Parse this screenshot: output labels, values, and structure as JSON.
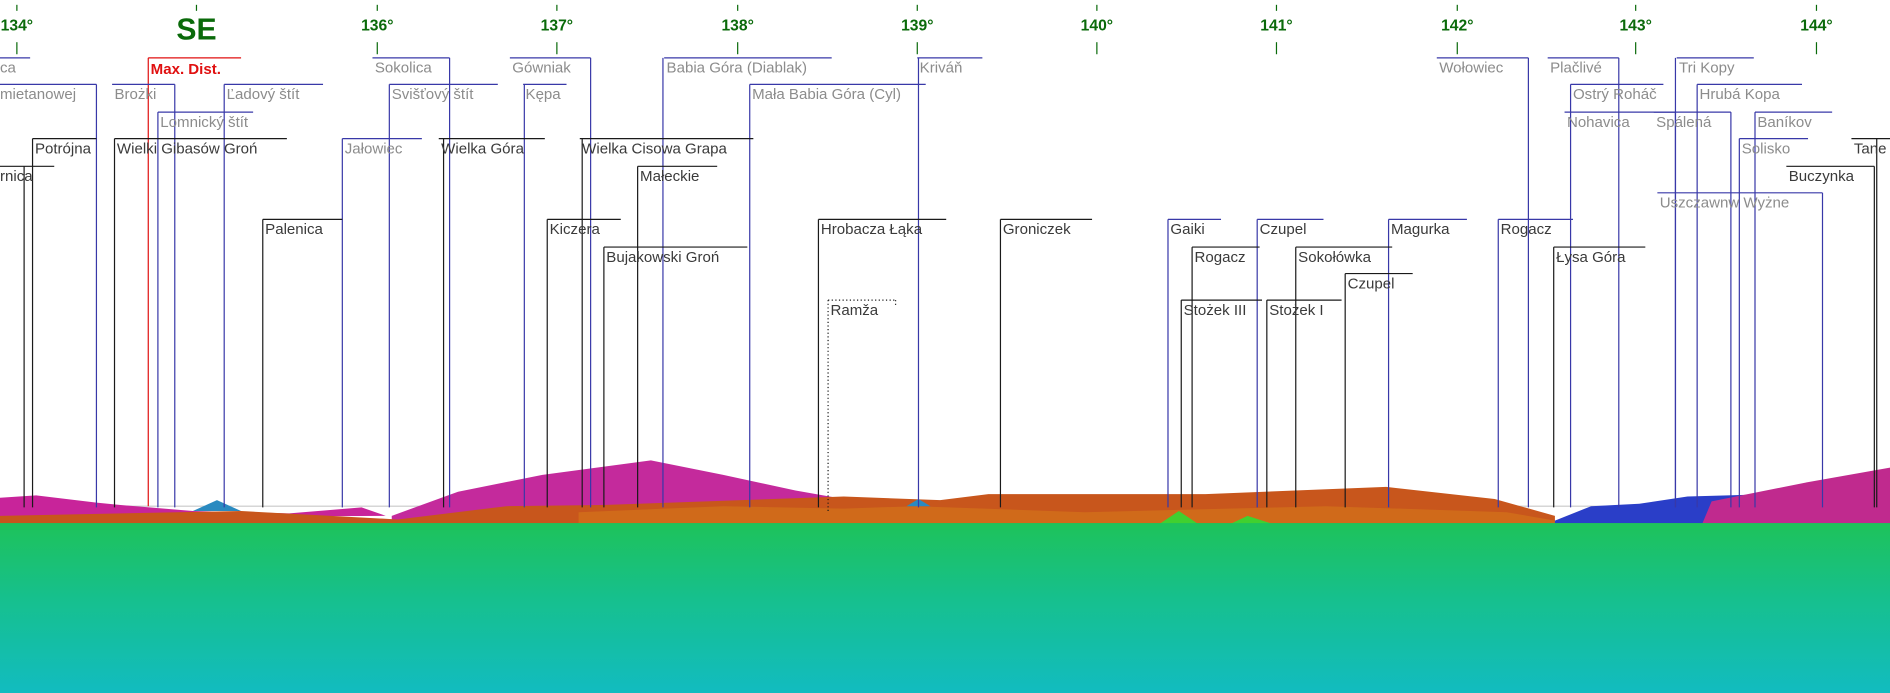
{
  "compass": {
    "heading": "SE",
    "degrees": [
      "134°",
      "136°",
      "137°",
      "138°",
      "139°",
      "140°",
      "141°",
      "142°",
      "143°",
      "144°"
    ]
  },
  "max_dist": "Max. Dist.",
  "peaks": [
    "ca",
    "Sokolica",
    "Gówniak",
    "Babia Góra (Diablak)",
    "Kriváň",
    "Wołowiec",
    "Plačlivé",
    "Tri Kopy",
    "mietanowej",
    "Brożki",
    "Ľadový štít",
    "Svišťový štít",
    "Kępa",
    "Mała Babia Góra (Cyl)",
    "Ostrý Roháč",
    "Hrubá Kopa",
    "Lomnický štít",
    "Nohavica",
    "Spálená",
    "Baníkov",
    "Potrójna",
    "Wielki Gibasów Groń",
    "Jałowiec",
    "Wielka Góra",
    "Wielka Cisowa Grapa",
    "Solisko",
    "Tane",
    "rnica",
    "Małeckie",
    "Buczynka",
    "Uszczawnw Wyżne",
    "Palenica",
    "Kiczera",
    "Hrobacza Łąka",
    "Groniczek",
    "Gaiki",
    "Czupel",
    "Magurka",
    "Rogacz",
    "Bujakowski Groń",
    "Rogacz",
    "Sokołówka",
    "Łysa Góra",
    "Czupel",
    "Ramža",
    "Stożek III",
    "Stożek I"
  ]
}
